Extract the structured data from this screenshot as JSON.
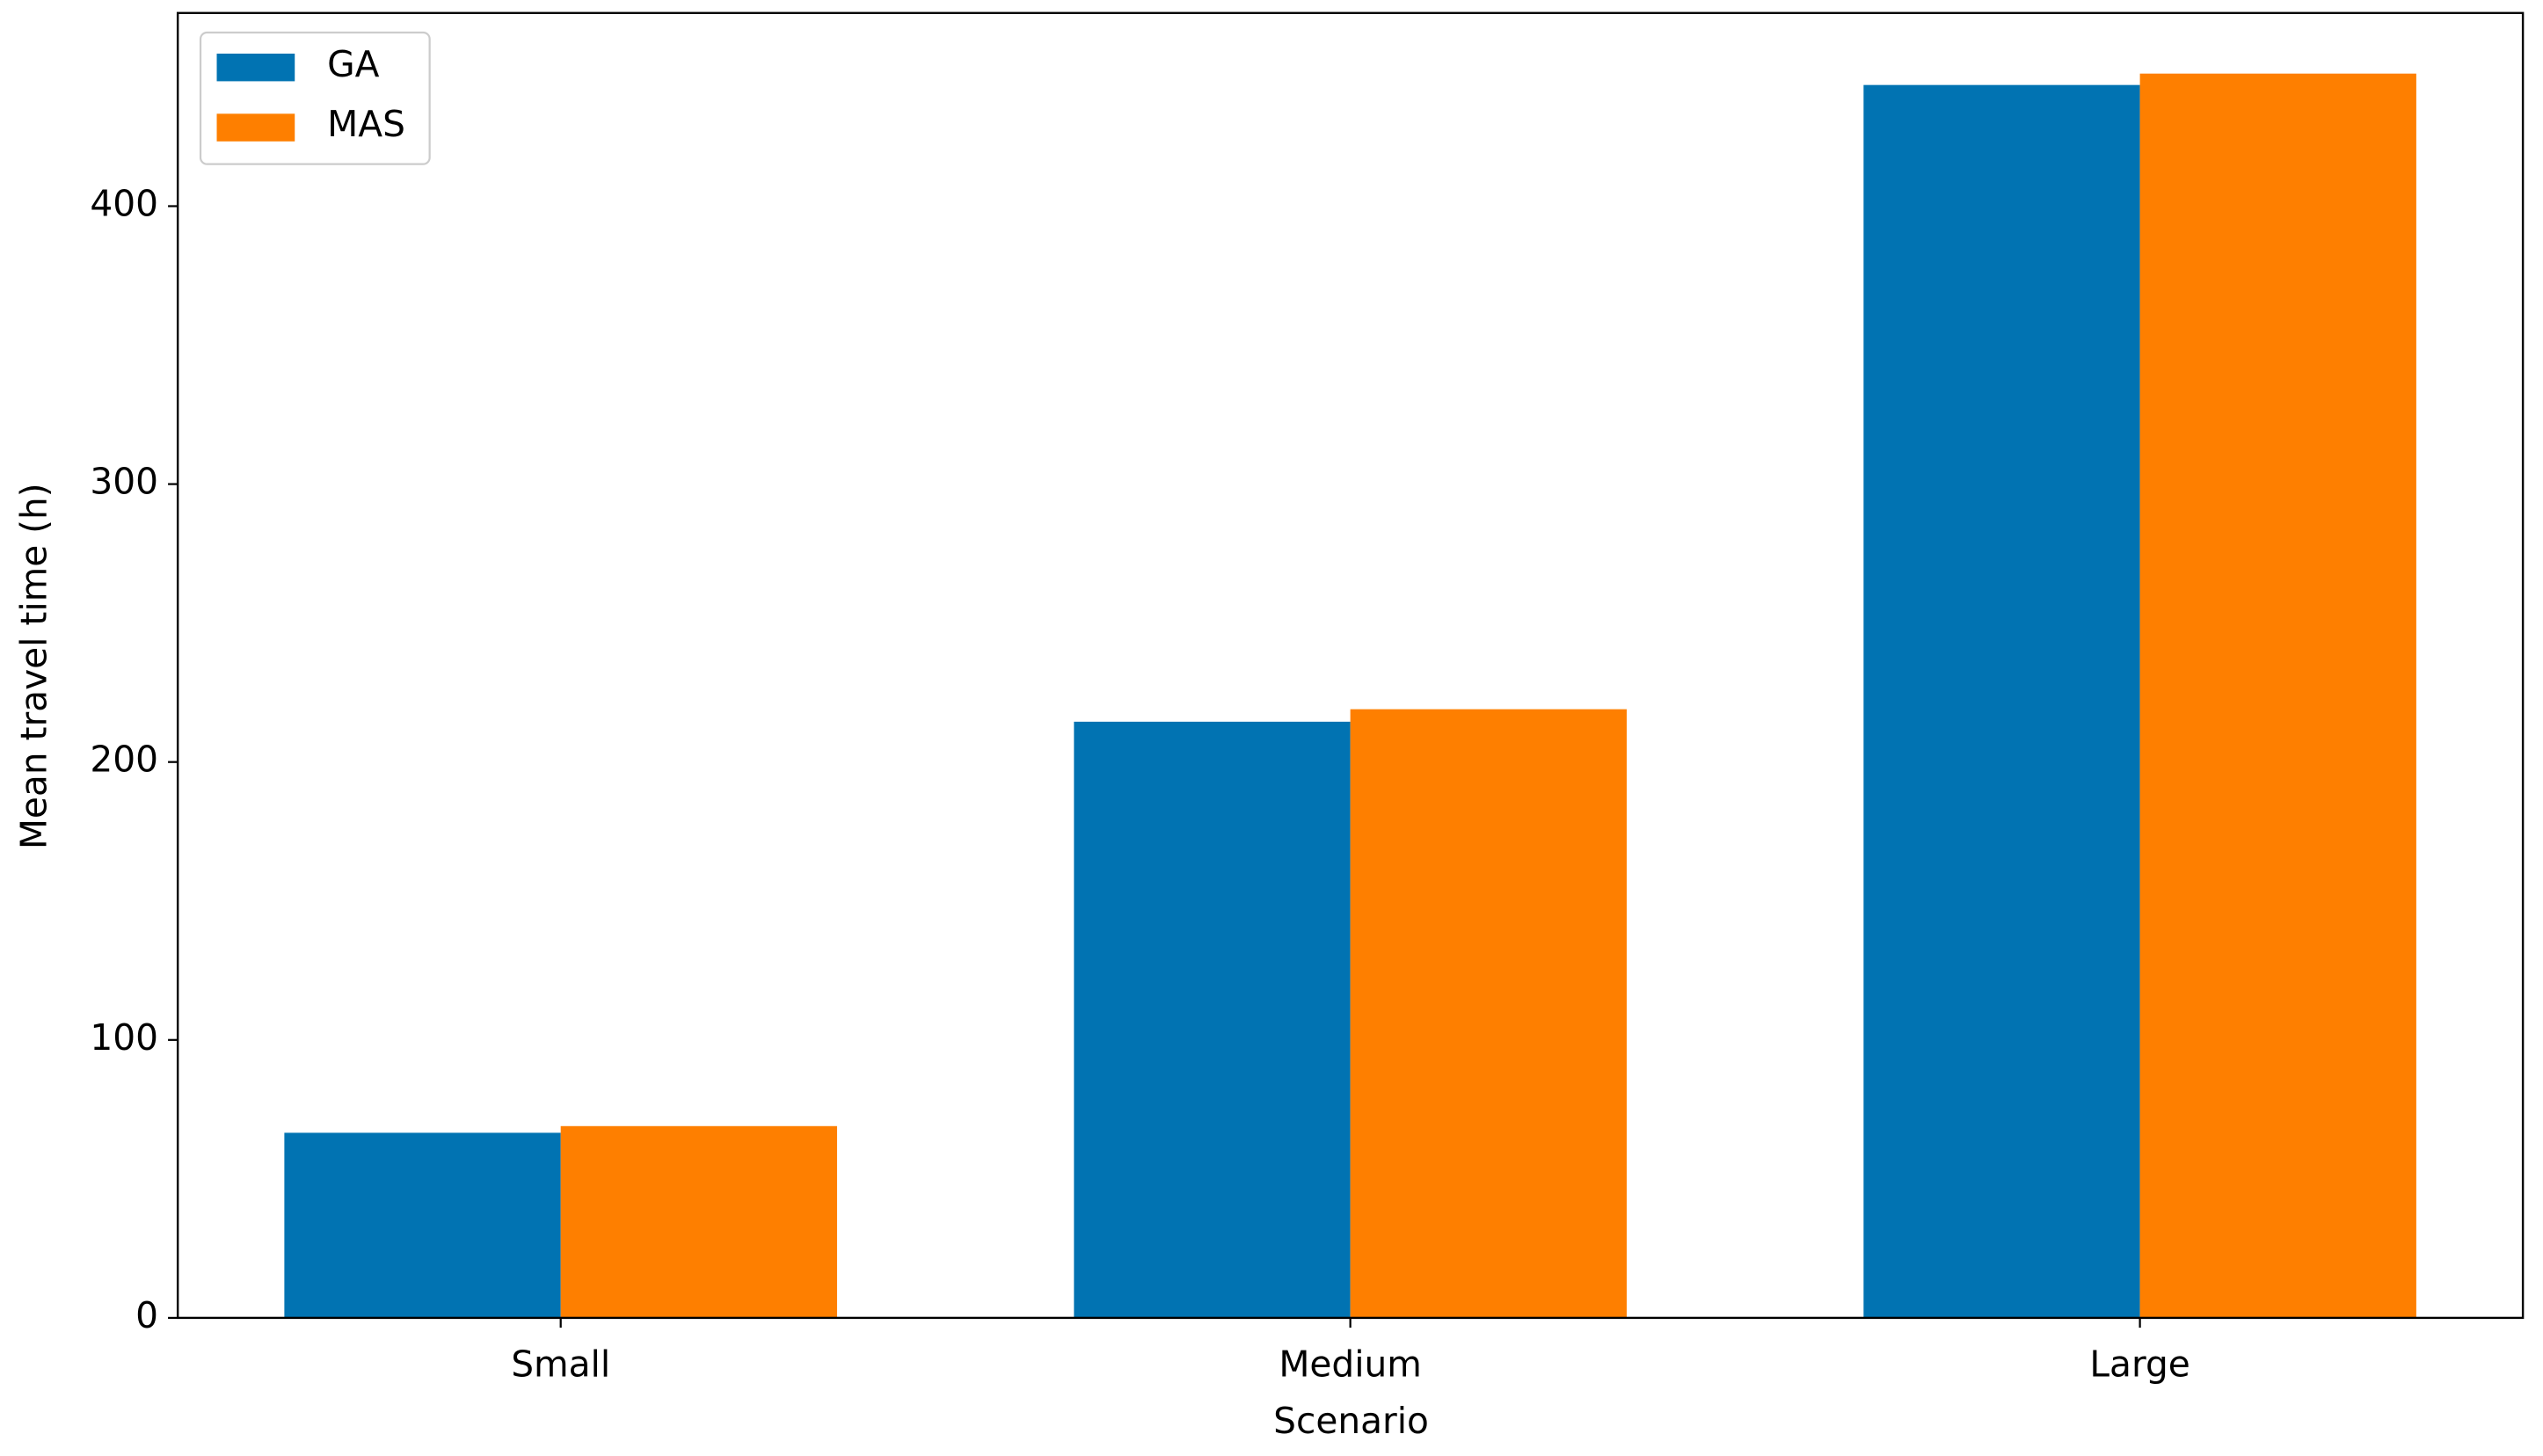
{
  "chart_data": {
    "type": "bar",
    "x_label": "Scenario",
    "y_label": "Mean travel time (h)",
    "categories": [
      "Small",
      "Medium",
      "Large"
    ],
    "series": [
      {
        "name": "GA",
        "color": "#0173b2",
        "values": [
          66.6,
          214.5,
          443.6
        ]
      },
      {
        "name": "MAS",
        "color": "#fe7f00",
        "values": [
          69,
          219,
          447.7
        ]
      }
    ],
    "ylim": [
      0,
      469.5
    ],
    "yticks": [
      0,
      100,
      200,
      300,
      400
    ],
    "grid": false,
    "legend": "upper left"
  }
}
